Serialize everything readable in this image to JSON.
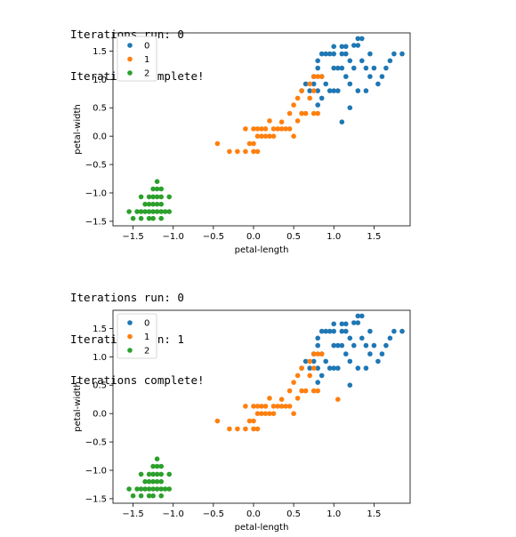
{
  "output_blocks": [
    {
      "log": [
        "Iterations run: 0",
        "Iterations complete!"
      ]
    },
    {
      "log": [
        "Iterations run: 0",
        "Iterations run: 1",
        "Iterations complete!"
      ]
    }
  ],
  "colors": {
    "0": "#1f77b4",
    "1": "#ff7f0e",
    "2": "#2ca02c"
  },
  "chart_data": [
    {
      "type": "scatter",
      "xlabel": "petal-length",
      "ylabel": "petal-width",
      "xlim": [
        -1.75,
        1.95
      ],
      "ylim": [
        -1.58,
        1.82
      ],
      "xticks": [
        -1.5,
        -1.0,
        -0.5,
        0.0,
        0.5,
        1.0,
        1.5
      ],
      "xtick_labels": [
        "−1.5",
        "−1.0",
        "−0.5",
        "0.0",
        "0.5",
        "1.0",
        "1.5"
      ],
      "yticks": [
        -1.5,
        -1.0,
        -0.5,
        0.0,
        0.5,
        1.0,
        1.5
      ],
      "ytick_labels": [
        "−1.5",
        "−1.0",
        "−0.5",
        "0.0",
        "0.5",
        "1.0",
        "1.5"
      ],
      "legend_position": "top-left",
      "series": [
        {
          "name": "0",
          "points": [
            [
              0.6,
              0.8
            ],
            [
              0.65,
              0.92
            ],
            [
              0.7,
              0.8
            ],
            [
              0.75,
              0.92
            ],
            [
              0.75,
              1.05
            ],
            [
              0.8,
              1.2
            ],
            [
              0.85,
              1.45
            ],
            [
              0.9,
              1.45
            ],
            [
              0.95,
              1.45
            ],
            [
              1.0,
              1.45
            ],
            [
              0.8,
              0.8
            ],
            [
              0.8,
              0.55
            ],
            [
              0.85,
              1.05
            ],
            [
              0.9,
              0.92
            ],
            [
              0.95,
              0.8
            ],
            [
              1.0,
              1.2
            ],
            [
              1.05,
              1.2
            ],
            [
              1.1,
              1.2
            ],
            [
              1.1,
              1.45
            ],
            [
              1.15,
              1.45
            ],
            [
              1.2,
              1.33
            ],
            [
              1.25,
              1.6
            ],
            [
              1.3,
              1.6
            ],
            [
              1.35,
              1.33
            ],
            [
              1.4,
              1.2
            ],
            [
              1.45,
              1.45
            ],
            [
              1.5,
              1.2
            ],
            [
              1.6,
              1.05
            ],
            [
              1.65,
              1.2
            ],
            [
              1.7,
              1.33
            ],
            [
              1.75,
              1.45
            ],
            [
              1.85,
              1.45
            ],
            [
              1.1,
              0.25
            ],
            [
              0.8,
              1.33
            ],
            [
              0.85,
              0.67
            ],
            [
              1.0,
              0.8
            ],
            [
              1.05,
              0.8
            ],
            [
              1.15,
              1.58
            ],
            [
              1.2,
              0.92
            ],
            [
              1.3,
              0.8
            ],
            [
              1.4,
              0.8
            ],
            [
              1.55,
              0.92
            ],
            [
              1.45,
              1.05
            ],
            [
              1.0,
              1.58
            ],
            [
              1.1,
              1.58
            ],
            [
              1.3,
              1.72
            ],
            [
              1.35,
              1.72
            ],
            [
              1.25,
              1.2
            ],
            [
              1.15,
              1.05
            ],
            [
              1.2,
              0.5
            ]
          ]
        },
        {
          "name": "1",
          "points": [
            [
              -0.45,
              -0.13
            ],
            [
              -0.3,
              -0.27
            ],
            [
              -0.2,
              -0.27
            ],
            [
              -0.1,
              -0.27
            ],
            [
              0.0,
              -0.27
            ],
            [
              0.05,
              -0.27
            ],
            [
              -0.05,
              -0.13
            ],
            [
              0.0,
              -0.13
            ],
            [
              0.05,
              0.0
            ],
            [
              0.1,
              0.0
            ],
            [
              0.15,
              0.0
            ],
            [
              0.2,
              0.0
            ],
            [
              0.25,
              0.0
            ],
            [
              0.3,
              0.13
            ],
            [
              0.35,
              0.13
            ],
            [
              0.4,
              0.13
            ],
            [
              0.45,
              0.13
            ],
            [
              0.5,
              0.0
            ],
            [
              0.55,
              0.27
            ],
            [
              0.6,
              0.4
            ],
            [
              0.65,
              0.4
            ],
            [
              0.7,
              0.67
            ],
            [
              0.75,
              0.8
            ],
            [
              0.8,
              1.05
            ],
            [
              0.85,
              1.05
            ],
            [
              0.75,
              1.05
            ],
            [
              0.1,
              0.13
            ],
            [
              0.15,
              0.13
            ],
            [
              0.2,
              0.27
            ],
            [
              0.35,
              0.25
            ],
            [
              0.45,
              0.4
            ],
            [
              0.5,
              0.55
            ],
            [
              0.55,
              0.67
            ],
            [
              0.6,
              0.8
            ],
            [
              0.7,
              0.92
            ],
            [
              0.75,
              0.4
            ],
            [
              0.8,
              0.4
            ],
            [
              0.0,
              0.13
            ],
            [
              0.05,
              0.13
            ],
            [
              0.25,
              0.13
            ],
            [
              -0.1,
              0.13
            ]
          ]
        },
        {
          "name": "2",
          "points": [
            [
              -1.5,
              -1.45
            ],
            [
              -1.45,
              -1.33
            ],
            [
              -1.4,
              -1.33
            ],
            [
              -1.35,
              -1.33
            ],
            [
              -1.3,
              -1.33
            ],
            [
              -1.25,
              -1.33
            ],
            [
              -1.2,
              -1.33
            ],
            [
              -1.15,
              -1.33
            ],
            [
              -1.1,
              -1.33
            ],
            [
              -1.05,
              -1.33
            ],
            [
              -1.35,
              -1.2
            ],
            [
              -1.3,
              -1.2
            ],
            [
              -1.25,
              -1.2
            ],
            [
              -1.2,
              -1.2
            ],
            [
              -1.15,
              -1.2
            ],
            [
              -1.3,
              -1.07
            ],
            [
              -1.25,
              -1.07
            ],
            [
              -1.2,
              -1.07
            ],
            [
              -1.15,
              -1.07
            ],
            [
              -1.05,
              -1.07
            ],
            [
              -1.25,
              -0.93
            ],
            [
              -1.2,
              -0.93
            ],
            [
              -1.15,
              -0.93
            ],
            [
              -1.2,
              -0.8
            ],
            [
              -1.4,
              -1.45
            ],
            [
              -1.3,
              -1.45
            ],
            [
              -1.25,
              -1.45
            ],
            [
              -1.55,
              -1.33
            ],
            [
              -1.4,
              -1.07
            ],
            [
              -1.15,
              -1.45
            ]
          ]
        }
      ]
    },
    {
      "type": "scatter",
      "xlabel": "petal-length",
      "ylabel": "petal-width",
      "xlim": [
        -1.75,
        1.95
      ],
      "ylim": [
        -1.58,
        1.82
      ],
      "xticks": [
        -1.5,
        -1.0,
        -0.5,
        0.0,
        0.5,
        1.0,
        1.5
      ],
      "xtick_labels": [
        "−1.5",
        "−1.0",
        "−0.5",
        "0.0",
        "0.5",
        "1.0",
        "1.5"
      ],
      "yticks": [
        -1.5,
        -1.0,
        -0.5,
        0.0,
        0.5,
        1.0,
        1.5
      ],
      "ytick_labels": [
        "−1.5",
        "−1.0",
        "−0.5",
        "0.0",
        "0.5",
        "1.0",
        "1.5"
      ],
      "legend_position": "top-left",
      "series": [
        {
          "name": "0",
          "points": [
            [
              0.6,
              0.8
            ],
            [
              0.65,
              0.92
            ],
            [
              0.7,
              0.8
            ],
            [
              0.75,
              0.92
            ],
            [
              0.75,
              1.05
            ],
            [
              0.8,
              1.2
            ],
            [
              0.85,
              1.45
            ],
            [
              0.9,
              1.45
            ],
            [
              0.95,
              1.45
            ],
            [
              1.0,
              1.45
            ],
            [
              0.8,
              0.8
            ],
            [
              0.8,
              0.55
            ],
            [
              0.85,
              1.05
            ],
            [
              0.9,
              0.92
            ],
            [
              0.95,
              0.8
            ],
            [
              1.0,
              1.2
            ],
            [
              1.05,
              1.2
            ],
            [
              1.1,
              1.2
            ],
            [
              1.1,
              1.45
            ],
            [
              1.15,
              1.45
            ],
            [
              1.2,
              1.33
            ],
            [
              1.25,
              1.6
            ],
            [
              1.3,
              1.6
            ],
            [
              1.35,
              1.33
            ],
            [
              1.4,
              1.2
            ],
            [
              1.45,
              1.45
            ],
            [
              1.5,
              1.2
            ],
            [
              1.6,
              1.05
            ],
            [
              1.65,
              1.2
            ],
            [
              1.7,
              1.33
            ],
            [
              1.75,
              1.45
            ],
            [
              1.85,
              1.45
            ],
            [
              0.8,
              1.33
            ],
            [
              0.85,
              0.67
            ],
            [
              1.0,
              0.8
            ],
            [
              1.05,
              0.8
            ],
            [
              1.15,
              1.58
            ],
            [
              1.2,
              0.92
            ],
            [
              1.3,
              0.8
            ],
            [
              1.4,
              0.8
            ],
            [
              1.55,
              0.92
            ],
            [
              1.45,
              1.05
            ],
            [
              1.0,
              1.58
            ],
            [
              1.1,
              1.58
            ],
            [
              1.3,
              1.72
            ],
            [
              1.35,
              1.72
            ],
            [
              1.25,
              1.2
            ],
            [
              1.15,
              1.05
            ],
            [
              1.2,
              0.5
            ]
          ]
        },
        {
          "name": "1",
          "points": [
            [
              -0.45,
              -0.13
            ],
            [
              -0.3,
              -0.27
            ],
            [
              -0.2,
              -0.27
            ],
            [
              -0.1,
              -0.27
            ],
            [
              0.0,
              -0.27
            ],
            [
              0.05,
              -0.27
            ],
            [
              -0.05,
              -0.13
            ],
            [
              0.0,
              -0.13
            ],
            [
              0.05,
              0.0
            ],
            [
              0.1,
              0.0
            ],
            [
              0.15,
              0.0
            ],
            [
              0.2,
              0.0
            ],
            [
              0.25,
              0.0
            ],
            [
              0.3,
              0.13
            ],
            [
              0.35,
              0.13
            ],
            [
              0.4,
              0.13
            ],
            [
              0.45,
              0.13
            ],
            [
              0.5,
              0.0
            ],
            [
              0.55,
              0.27
            ],
            [
              0.6,
              0.4
            ],
            [
              0.65,
              0.4
            ],
            [
              0.7,
              0.67
            ],
            [
              0.75,
              0.8
            ],
            [
              0.8,
              1.05
            ],
            [
              0.85,
              1.05
            ],
            [
              0.75,
              1.05
            ],
            [
              0.1,
              0.13
            ],
            [
              0.15,
              0.13
            ],
            [
              0.2,
              0.27
            ],
            [
              0.35,
              0.25
            ],
            [
              0.45,
              0.4
            ],
            [
              0.5,
              0.55
            ],
            [
              0.55,
              0.67
            ],
            [
              0.6,
              0.8
            ],
            [
              0.7,
              0.92
            ],
            [
              0.75,
              0.4
            ],
            [
              0.8,
              0.4
            ],
            [
              0.0,
              0.13
            ],
            [
              0.05,
              0.13
            ],
            [
              0.25,
              0.13
            ],
            [
              -0.1,
              0.13
            ],
            [
              1.05,
              0.25
            ]
          ]
        },
        {
          "name": "2",
          "points": [
            [
              -1.5,
              -1.45
            ],
            [
              -1.45,
              -1.33
            ],
            [
              -1.4,
              -1.33
            ],
            [
              -1.35,
              -1.33
            ],
            [
              -1.3,
              -1.33
            ],
            [
              -1.25,
              -1.33
            ],
            [
              -1.2,
              -1.33
            ],
            [
              -1.15,
              -1.33
            ],
            [
              -1.1,
              -1.33
            ],
            [
              -1.05,
              -1.33
            ],
            [
              -1.35,
              -1.2
            ],
            [
              -1.3,
              -1.2
            ],
            [
              -1.25,
              -1.2
            ],
            [
              -1.2,
              -1.2
            ],
            [
              -1.15,
              -1.2
            ],
            [
              -1.3,
              -1.07
            ],
            [
              -1.25,
              -1.07
            ],
            [
              -1.2,
              -1.07
            ],
            [
              -1.15,
              -1.07
            ],
            [
              -1.05,
              -1.07
            ],
            [
              -1.25,
              -0.93
            ],
            [
              -1.2,
              -0.93
            ],
            [
              -1.15,
              -0.93
            ],
            [
              -1.2,
              -0.8
            ],
            [
              -1.4,
              -1.45
            ],
            [
              -1.3,
              -1.45
            ],
            [
              -1.25,
              -1.45
            ],
            [
              -1.55,
              -1.33
            ],
            [
              -1.4,
              -1.07
            ],
            [
              -1.15,
              -1.45
            ]
          ]
        }
      ]
    }
  ]
}
